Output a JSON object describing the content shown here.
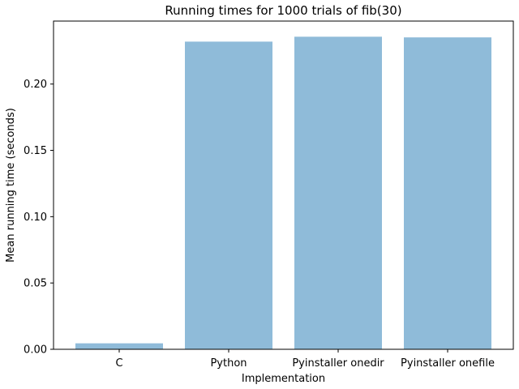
{
  "chart_data": {
    "type": "bar",
    "title": "Running times for 1000 trials of fib(30)",
    "xlabel": "Implementation",
    "ylabel": "Mean running time (seconds)",
    "categories": [
      "C",
      "Python",
      "Pyinstaller onedir",
      "Pyinstaller onefile"
    ],
    "values": [
      0.0045,
      0.232,
      0.2357,
      0.2352
    ],
    "ylim": [
      0,
      0.2475
    ],
    "yticks": [
      0.0,
      0.05,
      0.1,
      0.15,
      0.2
    ],
    "ytick_labels": [
      "0.00",
      "0.05",
      "0.10",
      "0.15",
      "0.20"
    ],
    "bar_color": "#8fbbd9",
    "grid": false,
    "legend": false
  }
}
